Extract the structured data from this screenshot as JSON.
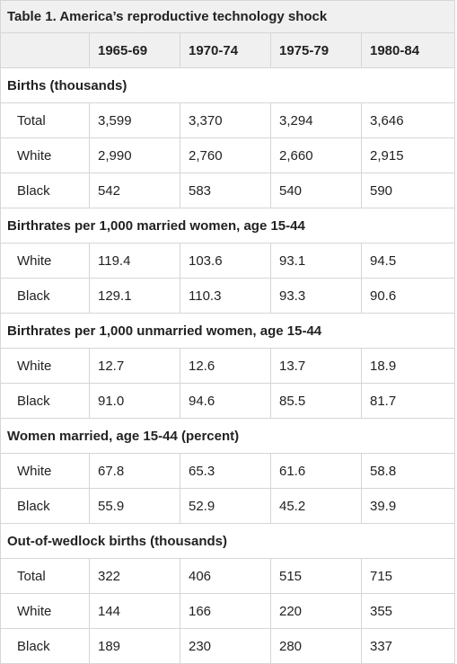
{
  "title": "Table 1. America’s reproductive technology shock",
  "columns": [
    "",
    "1965-69",
    "1970-74",
    "1975-79",
    "1980-84"
  ],
  "sections": [
    {
      "heading": "Births (thousands)",
      "rows": [
        {
          "label": "Total",
          "values": [
            "3,599",
            "3,370",
            "3,294",
            "3,646"
          ]
        },
        {
          "label": "White",
          "values": [
            "2,990",
            "2,760",
            "2,660",
            "2,915"
          ]
        },
        {
          "label": "Black",
          "values": [
            "542",
            "583",
            "540",
            "590"
          ]
        }
      ]
    },
    {
      "heading": "Birthrates per 1,000 married women, age 15-44",
      "rows": [
        {
          "label": "White",
          "values": [
            "119.4",
            "103.6",
            "93.1",
            "94.5"
          ]
        },
        {
          "label": "Black",
          "values": [
            "129.1",
            "110.3",
            "93.3",
            "90.6"
          ]
        }
      ]
    },
    {
      "heading": "Birthrates per 1,000 unmarried women, age 15-44",
      "rows": [
        {
          "label": "White",
          "values": [
            "12.7",
            "12.6",
            "13.7",
            "18.9"
          ]
        },
        {
          "label": "Black",
          "values": [
            "91.0",
            "94.6",
            "85.5",
            "81.7"
          ]
        }
      ]
    },
    {
      "heading": "Women married, age 15-44 (percent)",
      "rows": [
        {
          "label": "White",
          "values": [
            "67.8",
            "65.3",
            "61.6",
            "58.8"
          ]
        },
        {
          "label": "Black",
          "values": [
            "55.9",
            "52.9",
            "45.2",
            "39.9"
          ]
        }
      ]
    },
    {
      "heading": "Out-of-wedlock births (thousands)",
      "rows": [
        {
          "label": "Total",
          "values": [
            "322",
            "406",
            "515",
            "715"
          ]
        },
        {
          "label": "White",
          "values": [
            "144",
            "166",
            "220",
            "355"
          ]
        },
        {
          "label": "Black",
          "values": [
            "189",
            "230",
            "280",
            "337"
          ]
        }
      ]
    }
  ]
}
